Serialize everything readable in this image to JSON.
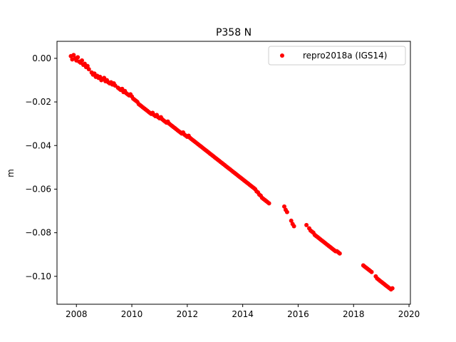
{
  "chart_data": {
    "type": "scatter",
    "title": "P358 N",
    "xlabel": "",
    "ylabel": "m",
    "xlim": [
      2007.3,
      2020.05
    ],
    "ylim": [
      -0.1128,
      0.0078
    ],
    "xticks": [
      2008,
      2010,
      2012,
      2014,
      2016,
      2018,
      2020
    ],
    "xtick_labels": [
      "2008",
      "2010",
      "2012",
      "2014",
      "2016",
      "2018",
      "2020"
    ],
    "yticks": [
      0.0,
      -0.02,
      -0.04,
      -0.06,
      -0.08,
      -0.1
    ],
    "ytick_labels": [
      "0.00",
      "−0.02",
      "−0.04",
      "−0.06",
      "−0.08",
      "−0.10"
    ],
    "grid": false,
    "legend": {
      "placement": "top-right",
      "entries": [
        "repro2018a (IGS14)"
      ]
    },
    "series": [
      {
        "name": "repro2018a (IGS14)",
        "color": "#ff0000",
        "marker": "circle",
        "points": [
          [
            2007.8,
            0.001
          ],
          [
            2007.85,
            -0.0005
          ],
          [
            2007.9,
            0.0015
          ],
          [
            2007.95,
            0.0
          ],
          [
            2008.0,
            -0.001
          ],
          [
            2008.05,
            0.0005
          ],
          [
            2008.1,
            -0.0015
          ],
          [
            2008.15,
            -0.002
          ],
          [
            2008.2,
            -0.001
          ],
          [
            2008.25,
            -0.003
          ],
          [
            2008.3,
            -0.0025
          ],
          [
            2008.35,
            -0.004
          ],
          [
            2008.4,
            -0.0035
          ],
          [
            2008.45,
            -0.005
          ],
          [
            2008.55,
            -0.0065
          ],
          [
            2008.6,
            -0.0075
          ],
          [
            2008.65,
            -0.007
          ],
          [
            2008.7,
            -0.0085
          ],
          [
            2008.75,
            -0.008
          ],
          [
            2008.8,
            -0.009
          ],
          [
            2008.85,
            -0.0085
          ],
          [
            2008.9,
            -0.01
          ],
          [
            2008.95,
            -0.0095
          ],
          [
            2009.0,
            -0.009
          ],
          [
            2009.05,
            -0.0105
          ],
          [
            2009.1,
            -0.01
          ],
          [
            2009.15,
            -0.011
          ],
          [
            2009.2,
            -0.0115
          ],
          [
            2009.25,
            -0.011
          ],
          [
            2009.3,
            -0.012
          ],
          [
            2009.35,
            -0.0115
          ],
          [
            2009.4,
            -0.0125
          ],
          [
            2009.5,
            -0.0135
          ],
          [
            2009.55,
            -0.014
          ],
          [
            2009.6,
            -0.0145
          ],
          [
            2009.65,
            -0.014
          ],
          [
            2009.7,
            -0.0155
          ],
          [
            2009.75,
            -0.015
          ],
          [
            2009.8,
            -0.016
          ],
          [
            2009.85,
            -0.0165
          ],
          [
            2009.9,
            -0.017
          ],
          [
            2009.95,
            -0.0165
          ],
          [
            2010.0,
            -0.0175
          ],
          [
            2010.05,
            -0.0185
          ],
          [
            2010.1,
            -0.019
          ],
          [
            2010.15,
            -0.0195
          ],
          [
            2010.2,
            -0.02
          ],
          [
            2010.25,
            -0.021
          ],
          [
            2010.3,
            -0.0215
          ],
          [
            2010.35,
            -0.022
          ],
          [
            2010.4,
            -0.0225
          ],
          [
            2010.45,
            -0.023
          ],
          [
            2010.5,
            -0.0235
          ],
          [
            2010.55,
            -0.024
          ],
          [
            2010.6,
            -0.0245
          ],
          [
            2010.65,
            -0.025
          ],
          [
            2010.7,
            -0.0255
          ],
          [
            2010.75,
            -0.025
          ],
          [
            2010.8,
            -0.026
          ],
          [
            2010.85,
            -0.0265
          ],
          [
            2010.9,
            -0.026
          ],
          [
            2010.95,
            -0.027
          ],
          [
            2011.0,
            -0.0275
          ],
          [
            2011.05,
            -0.027
          ],
          [
            2011.1,
            -0.028
          ],
          [
            2011.15,
            -0.0285
          ],
          [
            2011.2,
            -0.029
          ],
          [
            2011.25,
            -0.0295
          ],
          [
            2011.3,
            -0.029
          ],
          [
            2011.35,
            -0.03
          ],
          [
            2011.4,
            -0.0305
          ],
          [
            2011.45,
            -0.031
          ],
          [
            2011.5,
            -0.0315
          ],
          [
            2011.55,
            -0.032
          ],
          [
            2011.6,
            -0.0325
          ],
          [
            2011.65,
            -0.033
          ],
          [
            2011.7,
            -0.0335
          ],
          [
            2011.75,
            -0.034
          ],
          [
            2011.8,
            -0.0345
          ],
          [
            2011.85,
            -0.034
          ],
          [
            2011.9,
            -0.035
          ],
          [
            2011.95,
            -0.0355
          ],
          [
            2012.0,
            -0.036
          ],
          [
            2012.05,
            -0.0355
          ],
          [
            2012.1,
            -0.0365
          ],
          [
            2012.15,
            -0.037
          ],
          [
            2012.2,
            -0.0375
          ],
          [
            2012.25,
            -0.038
          ],
          [
            2012.3,
            -0.0385
          ],
          [
            2012.35,
            -0.039
          ],
          [
            2012.4,
            -0.0395
          ],
          [
            2012.45,
            -0.04
          ],
          [
            2012.5,
            -0.0405
          ],
          [
            2012.55,
            -0.041
          ],
          [
            2012.6,
            -0.0415
          ],
          [
            2012.65,
            -0.042
          ],
          [
            2012.7,
            -0.0425
          ],
          [
            2012.75,
            -0.043
          ],
          [
            2012.8,
            -0.0435
          ],
          [
            2012.85,
            -0.044
          ],
          [
            2012.9,
            -0.0445
          ],
          [
            2012.95,
            -0.045
          ],
          [
            2013.0,
            -0.0455
          ],
          [
            2013.05,
            -0.046
          ],
          [
            2013.1,
            -0.0465
          ],
          [
            2013.15,
            -0.047
          ],
          [
            2013.2,
            -0.0475
          ],
          [
            2013.25,
            -0.048
          ],
          [
            2013.3,
            -0.0485
          ],
          [
            2013.35,
            -0.049
          ],
          [
            2013.4,
            -0.0495
          ],
          [
            2013.45,
            -0.05
          ],
          [
            2013.5,
            -0.0505
          ],
          [
            2013.55,
            -0.051
          ],
          [
            2013.6,
            -0.0515
          ],
          [
            2013.65,
            -0.052
          ],
          [
            2013.7,
            -0.0525
          ],
          [
            2013.75,
            -0.053
          ],
          [
            2013.8,
            -0.0535
          ],
          [
            2013.85,
            -0.054
          ],
          [
            2013.9,
            -0.0545
          ],
          [
            2013.95,
            -0.055
          ],
          [
            2014.0,
            -0.0555
          ],
          [
            2014.05,
            -0.056
          ],
          [
            2014.1,
            -0.0565
          ],
          [
            2014.15,
            -0.057
          ],
          [
            2014.2,
            -0.0575
          ],
          [
            2014.25,
            -0.058
          ],
          [
            2014.3,
            -0.0585
          ],
          [
            2014.35,
            -0.059
          ],
          [
            2014.4,
            -0.0595
          ],
          [
            2014.45,
            -0.06
          ],
          [
            2014.5,
            -0.061
          ],
          [
            2014.55,
            -0.0615
          ],
          [
            2014.6,
            -0.0625
          ],
          [
            2014.65,
            -0.063
          ],
          [
            2014.7,
            -0.064
          ],
          [
            2014.75,
            -0.0645
          ],
          [
            2014.8,
            -0.065
          ],
          [
            2014.85,
            -0.0655
          ],
          [
            2014.9,
            -0.066
          ],
          [
            2014.95,
            -0.0665
          ],
          [
            2015.5,
            -0.068
          ],
          [
            2015.55,
            -0.0695
          ],
          [
            2015.6,
            -0.0705
          ],
          [
            2015.75,
            -0.0745
          ],
          [
            2015.8,
            -0.076
          ],
          [
            2015.85,
            -0.077
          ],
          [
            2016.3,
            -0.0765
          ],
          [
            2016.4,
            -0.078
          ],
          [
            2016.45,
            -0.079
          ],
          [
            2016.5,
            -0.0795
          ],
          [
            2016.55,
            -0.08
          ],
          [
            2016.6,
            -0.081
          ],
          [
            2016.65,
            -0.0815
          ],
          [
            2016.7,
            -0.082
          ],
          [
            2016.75,
            -0.0825
          ],
          [
            2016.8,
            -0.083
          ],
          [
            2016.85,
            -0.0835
          ],
          [
            2016.9,
            -0.084
          ],
          [
            2016.95,
            -0.0845
          ],
          [
            2017.0,
            -0.085
          ],
          [
            2017.05,
            -0.0855
          ],
          [
            2017.1,
            -0.086
          ],
          [
            2017.15,
            -0.0865
          ],
          [
            2017.2,
            -0.087
          ],
          [
            2017.25,
            -0.0875
          ],
          [
            2017.3,
            -0.088
          ],
          [
            2017.35,
            -0.0885
          ],
          [
            2017.4,
            -0.0885
          ],
          [
            2017.45,
            -0.089
          ],
          [
            2017.5,
            -0.0895
          ],
          [
            2018.35,
            -0.095
          ],
          [
            2018.4,
            -0.0955
          ],
          [
            2018.45,
            -0.096
          ],
          [
            2018.5,
            -0.0965
          ],
          [
            2018.55,
            -0.097
          ],
          [
            2018.6,
            -0.0975
          ],
          [
            2018.65,
            -0.098
          ],
          [
            2018.8,
            -0.1
          ],
          [
            2018.85,
            -0.101
          ],
          [
            2018.9,
            -0.1015
          ],
          [
            2018.95,
            -0.102
          ],
          [
            2019.0,
            -0.1025
          ],
          [
            2019.05,
            -0.103
          ],
          [
            2019.1,
            -0.1035
          ],
          [
            2019.15,
            -0.104
          ],
          [
            2019.2,
            -0.1045
          ],
          [
            2019.25,
            -0.105
          ],
          [
            2019.3,
            -0.1055
          ],
          [
            2019.35,
            -0.106
          ],
          [
            2019.4,
            -0.1055
          ]
        ]
      }
    ]
  }
}
